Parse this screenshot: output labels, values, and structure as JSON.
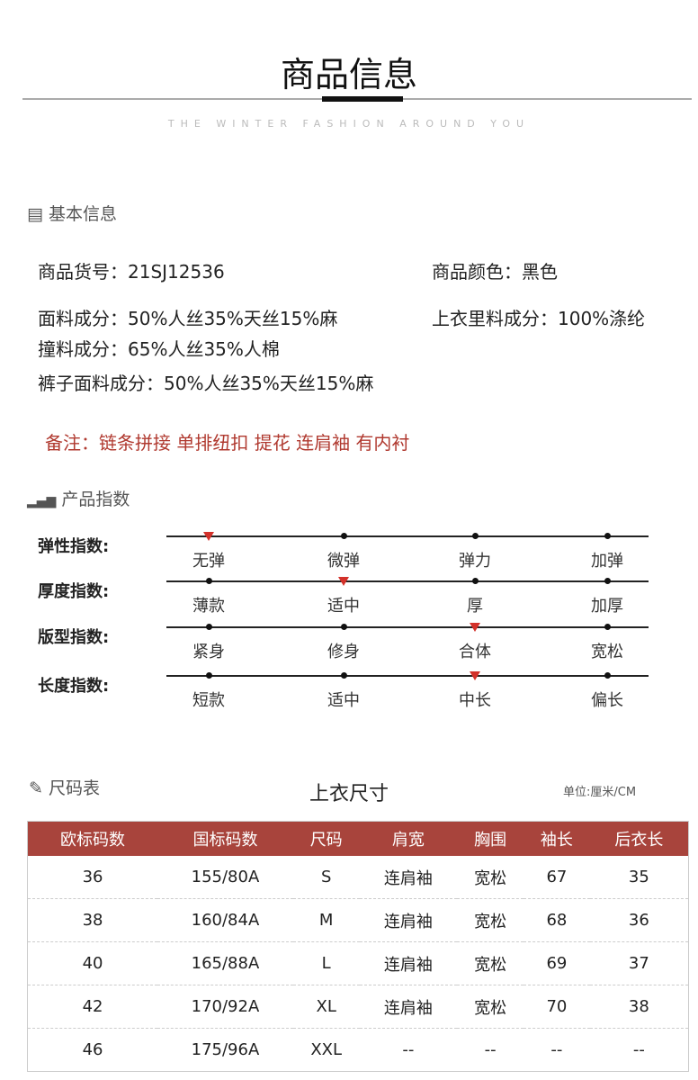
{
  "header": {
    "title": "商品信息",
    "subtitle": "THE WINTER FASHION AROUND YOU"
  },
  "basic": {
    "heading": "基本信息",
    "icon": "document-icon",
    "fields": [
      {
        "label": "商品货号：",
        "value": "21SJ12536"
      },
      {
        "label": "商品颜色：",
        "value": "黑色"
      },
      {
        "label": "面料成分：",
        "value": "50%人丝35%天丝15%麻"
      },
      {
        "label": "上衣里料成分：",
        "value": "100%涤纶"
      },
      {
        "label": "撞料成分：",
        "value": "65%人丝35%人棉"
      },
      {
        "label": "裤子面料成分：",
        "value": "50%人丝35%天丝15%麻"
      }
    ],
    "note_label": "备注：",
    "note": "链条拼接 单排纽扣 提花 连肩袖 有内衬"
  },
  "index": {
    "heading": "产品指数",
    "icon": "bar-chart-icon",
    "rows": [
      {
        "label": "弹性指数:",
        "options": [
          "无弹",
          "微弹",
          "弹力",
          "加弹"
        ],
        "selected": 0
      },
      {
        "label": "厚度指数:",
        "options": [
          "薄款",
          "适中",
          "厚",
          "加厚"
        ],
        "selected": 1
      },
      {
        "label": "版型指数:",
        "options": [
          "紧身",
          "修身",
          "合体",
          "宽松"
        ],
        "selected": 2
      },
      {
        "label": "长度指数:",
        "options": [
          "短款",
          "适中",
          "中长",
          "偏长"
        ],
        "selected": 2
      }
    ]
  },
  "size": {
    "heading": "尺码表",
    "icon": "ruler-icon",
    "table_title": "上衣尺寸",
    "unit": "单位:厘米/CM",
    "columns": [
      "欧标码数",
      "国标码数",
      "尺码",
      "肩宽",
      "胸围",
      "袖长",
      "后衣长"
    ],
    "rows": [
      [
        "36",
        "155/80A",
        "S",
        "连肩袖",
        "宽松",
        "67",
        "35"
      ],
      [
        "38",
        "160/84A",
        "M",
        "连肩袖",
        "宽松",
        "68",
        "36"
      ],
      [
        "40",
        "165/88A",
        "L",
        "连肩袖",
        "宽松",
        "69",
        "37"
      ],
      [
        "42",
        "170/92A",
        "XL",
        "连肩袖",
        "宽松",
        "70",
        "38"
      ],
      [
        "46",
        "175/96A",
        "XXL",
        "--",
        "--",
        "--",
        "--"
      ]
    ]
  },
  "colors": {
    "accent": "#a8443c",
    "marker": "#d3312a",
    "note": "#b0392f"
  }
}
